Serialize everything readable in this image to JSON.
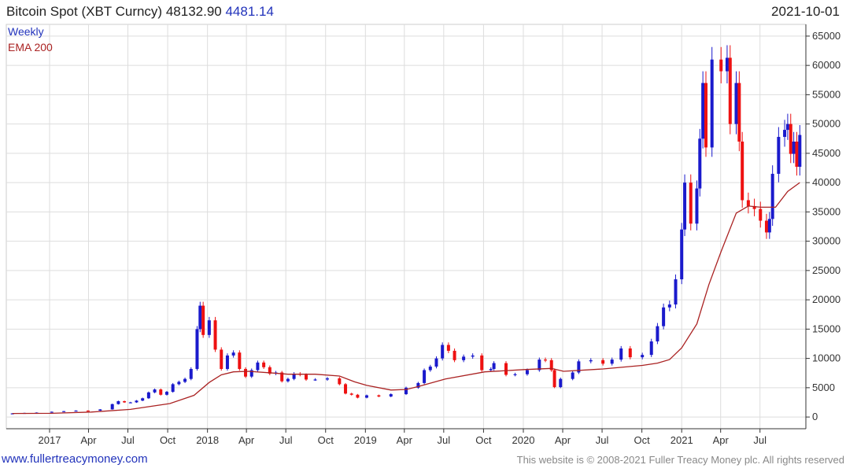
{
  "header": {
    "title": "Bitcoin Spot (XBT Curncy)",
    "price": "48132.90",
    "change": "4481.14",
    "date": "2021-10-01"
  },
  "footer": {
    "site": "www.fullertreacymoney.com",
    "copyright": "This website is © 2008-2021 Fuller Treacy Money plc. All rights reserved"
  },
  "colors": {
    "up": "#1a1acc",
    "down": "#ee1111",
    "ema": "#aa2222",
    "grid": "#dddddd",
    "axis": "#333333"
  },
  "chart_data": {
    "type": "candlestick",
    "ylim": [
      -2000,
      67000
    ],
    "yticks": [
      0,
      5000,
      10000,
      15000,
      20000,
      25000,
      30000,
      35000,
      40000,
      45000,
      50000,
      55000,
      60000,
      65000
    ],
    "ytick_labels": [
      "0",
      "5000",
      "10000",
      "15000",
      "20000",
      "25000",
      "30000",
      "35000",
      "40000",
      "45000",
      "50000",
      "55000",
      "60000",
      "65000"
    ],
    "xlim": [
      "2016-09-23",
      "2021-10-15"
    ],
    "xticks": [
      "2017-01-01",
      "2017-04-01",
      "2017-07-01",
      "2017-10-01",
      "2018-01-01",
      "2018-04-01",
      "2018-07-01",
      "2018-10-01",
      "2019-01-01",
      "2019-04-01",
      "2019-07-01",
      "2019-10-01",
      "2020-01-01",
      "2020-04-01",
      "2020-07-01",
      "2020-10-01",
      "2021-01-01",
      "2021-04-01",
      "2021-07-01"
    ],
    "xtick_labels": [
      "2017",
      "Apr",
      "Jul",
      "Oct",
      "2018",
      "Apr",
      "Jul",
      "Oct",
      "2019",
      "Apr",
      "Jul",
      "Oct",
      "2020",
      "Apr",
      "Jul",
      "Oct",
      "2021",
      "Apr",
      "Jul"
    ],
    "legend": [
      "Weekly",
      "EMA 200"
    ],
    "legend_position": "top-left",
    "grid": true,
    "series": [
      {
        "name": "Weekly",
        "kind": "close",
        "dates": [
          "2016-10-07",
          "2016-11-04",
          "2016-12-02",
          "2017-01-06",
          "2017-02-03",
          "2017-03-03",
          "2017-03-31",
          "2017-04-28",
          "2017-05-26",
          "2017-06-09",
          "2017-06-23",
          "2017-07-07",
          "2017-07-21",
          "2017-08-04",
          "2017-08-18",
          "2017-09-01",
          "2017-09-15",
          "2017-09-29",
          "2017-10-13",
          "2017-10-27",
          "2017-11-10",
          "2017-11-24",
          "2017-12-08",
          "2017-12-15",
          "2017-12-22",
          "2018-01-05",
          "2018-01-19",
          "2018-02-02",
          "2018-02-16",
          "2018-03-02",
          "2018-03-16",
          "2018-03-30",
          "2018-04-13",
          "2018-04-27",
          "2018-05-11",
          "2018-05-25",
          "2018-06-08",
          "2018-06-22",
          "2018-07-06",
          "2018-07-20",
          "2018-08-03",
          "2018-08-17",
          "2018-09-07",
          "2018-10-05",
          "2018-11-02",
          "2018-11-16",
          "2018-11-30",
          "2018-12-14",
          "2019-01-04",
          "2019-02-01",
          "2019-03-01",
          "2019-04-05",
          "2019-05-03",
          "2019-05-17",
          "2019-05-31",
          "2019-06-14",
          "2019-06-28",
          "2019-07-12",
          "2019-07-26",
          "2019-08-16",
          "2019-09-06",
          "2019-09-27",
          "2019-10-18",
          "2019-10-25",
          "2019-11-22",
          "2019-12-13",
          "2020-01-10",
          "2020-02-07",
          "2020-02-21",
          "2020-03-06",
          "2020-03-13",
          "2020-03-27",
          "2020-04-24",
          "2020-05-08",
          "2020-06-05",
          "2020-07-03",
          "2020-07-24",
          "2020-08-14",
          "2020-09-04",
          "2020-10-02",
          "2020-10-23",
          "2020-11-06",
          "2020-11-20",
          "2020-12-04",
          "2020-12-18",
          "2021-01-01",
          "2021-01-08",
          "2021-01-22",
          "2021-02-05",
          "2021-02-12",
          "2021-02-19",
          "2021-02-26",
          "2021-03-12",
          "2021-04-02",
          "2021-04-16",
          "2021-04-23",
          "2021-05-07",
          "2021-05-14",
          "2021-05-21",
          "2021-06-04",
          "2021-06-18",
          "2021-07-02",
          "2021-07-16",
          "2021-07-23",
          "2021-07-30",
          "2021-08-13",
          "2021-08-27",
          "2021-09-03",
          "2021-09-10",
          "2021-09-17",
          "2021-09-24",
          "2021-10-01"
        ],
        "values": [
          620,
          700,
          760,
          900,
          1000,
          1100,
          1080,
          1300,
          2200,
          2700,
          2500,
          2500,
          2800,
          3200,
          4200,
          4700,
          3800,
          4300,
          5600,
          6000,
          6500,
          8200,
          15000,
          19000,
          14000,
          16500,
          11500,
          8200,
          10500,
          11000,
          8200,
          6900,
          8000,
          9300,
          8500,
          7400,
          7600,
          6100,
          6500,
          7400,
          7200,
          6400,
          6400,
          6600,
          5600,
          4000,
          3800,
          3300,
          3700,
          3500,
          3900,
          5000,
          5800,
          8000,
          8600,
          10000,
          12300,
          11300,
          9700,
          10300,
          10500,
          8000,
          8200,
          9200,
          7200,
          7300,
          8000,
          9800,
          9700,
          8000,
          5100,
          6500,
          7600,
          9500,
          9700,
          9100,
          9800,
          11700,
          10200,
          10600,
          12900,
          15500,
          18700,
          19200,
          23500,
          32000,
          40000,
          33000,
          39000,
          47500,
          57000,
          46000,
          61000,
          59000,
          61300,
          50000,
          57000,
          47000,
          37000,
          36000,
          35500,
          33500,
          31500,
          33800,
          41500,
          47800,
          49000,
          50000,
          44900,
          47000,
          42700,
          48132.9
        ]
      },
      {
        "name": "EMA 200",
        "kind": "line",
        "dates": [
          "2016-10-07",
          "2017-01-06",
          "2017-04-07",
          "2017-07-07",
          "2017-10-06",
          "2017-12-01",
          "2018-01-05",
          "2018-02-02",
          "2018-03-02",
          "2018-04-06",
          "2018-06-01",
          "2018-07-06",
          "2018-09-07",
          "2018-11-02",
          "2018-12-07",
          "2019-01-04",
          "2019-03-01",
          "2019-04-05",
          "2019-05-03",
          "2019-07-05",
          "2019-10-04",
          "2020-01-03",
          "2020-03-06",
          "2020-04-03",
          "2020-07-03",
          "2020-10-02",
          "2020-11-06",
          "2020-12-04",
          "2021-01-01",
          "2021-02-05",
          "2021-03-05",
          "2021-04-02",
          "2021-05-07",
          "2021-06-04",
          "2021-07-02",
          "2021-08-06",
          "2021-09-03",
          "2021-10-01"
        ],
        "values": [
          600,
          630,
          850,
          1300,
          2300,
          3700,
          5900,
          7200,
          7700,
          7800,
          7500,
          7300,
          7300,
          7000,
          6000,
          5400,
          4600,
          4700,
          5200,
          6500,
          7700,
          8100,
          8300,
          7800,
          8200,
          8800,
          9200,
          9800,
          11800,
          15900,
          22600,
          28200,
          34800,
          36000,
          35800,
          35800,
          38500,
          40000
        ]
      }
    ]
  }
}
